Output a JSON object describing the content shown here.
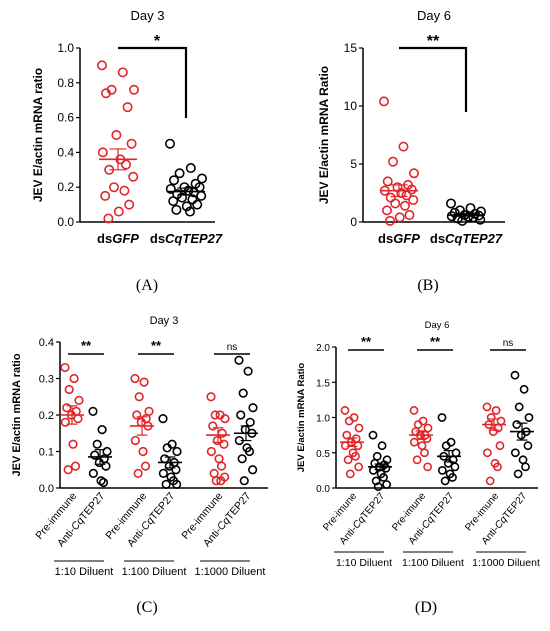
{
  "chart_data": [
    {
      "panel": "(A)",
      "type": "scatter",
      "title": "Day 3",
      "ylabel": "JEV E/actin mRNA ratio",
      "ylim": [
        0,
        1.0
      ],
      "yticks": [
        "0.0",
        "0.2",
        "0.4",
        "0.6",
        "0.8",
        "1.0"
      ],
      "categories": [
        {
          "prefix": "ds",
          "italic": "GFP"
        },
        {
          "prefix": "ds",
          "italic": "CqTEP27"
        }
      ],
      "significance": "*",
      "colors": [
        "#e0262b",
        "#000000"
      ],
      "series": [
        {
          "values": [
            0.9,
            0.86,
            0.76,
            0.76,
            0.74,
            0.66,
            0.5,
            0.45,
            0.4,
            0.36,
            0.33,
            0.3,
            0.26,
            0.2,
            0.18,
            0.15,
            0.1,
            0.06,
            0.02
          ],
          "mean": 0.36,
          "sem": 0.06
        },
        {
          "values": [
            0.45,
            0.31,
            0.28,
            0.25,
            0.24,
            0.22,
            0.2,
            0.2,
            0.19,
            0.18,
            0.17,
            0.16,
            0.15,
            0.14,
            0.13,
            0.12,
            0.1,
            0.09,
            0.07,
            0.06
          ],
          "mean": 0.175,
          "sem": 0.02
        }
      ]
    },
    {
      "panel": "(B)",
      "type": "scatter",
      "title": "Day 6",
      "ylabel": "JEV E/actin mRNA Ratio",
      "ylim": [
        0,
        15
      ],
      "yticks": [
        "0",
        "5",
        "10",
        "15"
      ],
      "categories": [
        {
          "prefix": "ds",
          "italic": "GFP"
        },
        {
          "prefix": "ds",
          "italic": "CqTEP27"
        }
      ],
      "significance": "**",
      "colors": [
        "#e0262b",
        "#000000"
      ],
      "series": [
        {
          "values": [
            10.4,
            6.5,
            5.2,
            4.2,
            3.5,
            3.2,
            3.0,
            2.8,
            2.7,
            2.5,
            2.3,
            2.1,
            1.9,
            1.6,
            1.4,
            1.0,
            0.6,
            0.4,
            0.1
          ],
          "mean": 2.7,
          "sem": 0.5
        },
        {
          "values": [
            1.6,
            1.2,
            1.0,
            0.9,
            0.8,
            0.7,
            0.6,
            0.55,
            0.5,
            0.45,
            0.4,
            0.3,
            0.2,
            0.1
          ],
          "mean": 0.6,
          "sem": 0.1
        }
      ]
    },
    {
      "panel": "(C)",
      "type": "scatter",
      "title": "Day 3",
      "ylabel": "JEV E/actin mRNA ratio",
      "ylim": [
        0,
        0.4
      ],
      "yticks": [
        "0.0",
        "0.1",
        "0.2",
        "0.3",
        "0.4"
      ],
      "categories": [
        "Pre-immune",
        {
          "prefix": "Anti-",
          "italic": "Cq",
          "suffix": "TEP27"
        }
      ],
      "groups": [
        "1:10 Diluent",
        "1:100 Diluent",
        "1:1000 Diluent"
      ],
      "significance": [
        "**",
        "**",
        "ns"
      ],
      "colors": [
        "#e0262b",
        "#000000"
      ],
      "series": [
        {
          "values": [
            0.33,
            0.3,
            0.27,
            0.24,
            0.22,
            0.21,
            0.2,
            0.19,
            0.18,
            0.12,
            0.06,
            0.05
          ],
          "mean": 0.2,
          "sem": 0.025
        },
        {
          "values": [
            0.21,
            0.16,
            0.12,
            0.1,
            0.09,
            0.08,
            0.07,
            0.06,
            0.04,
            0.02,
            0.015
          ],
          "mean": 0.085,
          "sem": 0.02
        },
        {
          "values": [
            0.3,
            0.29,
            0.25,
            0.21,
            0.2,
            0.19,
            0.18,
            0.17,
            0.13,
            0.1,
            0.06,
            0.04
          ],
          "mean": 0.17,
          "sem": 0.025
        },
        {
          "values": [
            0.19,
            0.12,
            0.11,
            0.1,
            0.08,
            0.07,
            0.06,
            0.05,
            0.04,
            0.03,
            0.02,
            0.01,
            0.01
          ],
          "mean": 0.07,
          "sem": 0.015
        },
        {
          "values": [
            0.25,
            0.2,
            0.2,
            0.19,
            0.17,
            0.15,
            0.13,
            0.12,
            0.1,
            0.08,
            0.06,
            0.04,
            0.03,
            0.02,
            0.02
          ],
          "mean": 0.145,
          "sem": 0.02
        },
        {
          "values": [
            0.35,
            0.32,
            0.26,
            0.22,
            0.2,
            0.18,
            0.16,
            0.15,
            0.13,
            0.11,
            0.1,
            0.08,
            0.05,
            0.02
          ],
          "mean": 0.15,
          "sem": 0.02
        }
      ]
    },
    {
      "panel": "(D)",
      "type": "scatter",
      "title": "Day 6",
      "ylabel": "JEV E/actin mRNA Ratio",
      "ylim": [
        0,
        2.0
      ],
      "yticks": [
        "0.0",
        "0.5",
        "1.0",
        "1.5",
        "2.0"
      ],
      "categories": [
        "Pre-imune",
        {
          "prefix": "Anti-",
          "italic": "Cq",
          "suffix": "TEP27"
        }
      ],
      "groups": [
        "1:10 Diluent",
        "1:100 Diluent",
        "1:1000 Diluent"
      ],
      "significance": [
        "**",
        "**",
        "ns"
      ],
      "colors": [
        "#e0262b",
        "#000000"
      ],
      "series": [
        {
          "values": [
            1.1,
            1.0,
            0.95,
            0.85,
            0.75,
            0.7,
            0.65,
            0.6,
            0.6,
            0.5,
            0.45,
            0.4,
            0.3,
            0.2
          ],
          "mean": 0.65,
          "sem": 0.06
        },
        {
          "values": [
            0.75,
            0.6,
            0.45,
            0.4,
            0.35,
            0.33,
            0.3,
            0.28,
            0.25,
            0.2,
            0.15,
            0.1,
            0.05,
            0.02
          ],
          "mean": 0.3,
          "sem": 0.04
        },
        {
          "values": [
            1.1,
            0.95,
            0.9,
            0.85,
            0.8,
            0.75,
            0.75,
            0.7,
            0.65,
            0.6,
            0.5,
            0.4,
            0.3
          ],
          "mean": 0.75,
          "sem": 0.06
        },
        {
          "values": [
            1.0,
            0.65,
            0.6,
            0.5,
            0.45,
            0.4,
            0.35,
            0.3,
            0.25,
            0.2,
            0.15,
            0.1
          ],
          "mean": 0.45,
          "sem": 0.08
        },
        {
          "values": [
            1.15,
            1.1,
            1.0,
            0.95,
            0.9,
            0.85,
            0.8,
            0.6,
            0.5,
            0.35,
            0.3,
            0.1
          ],
          "mean": 0.9,
          "sem": 0.08
        },
        {
          "values": [
            1.6,
            1.4,
            1.15,
            1.0,
            0.9,
            0.8,
            0.75,
            0.6,
            0.5,
            0.4,
            0.3,
            0.2
          ],
          "mean": 0.8,
          "sem": 0.12
        }
      ]
    }
  ]
}
